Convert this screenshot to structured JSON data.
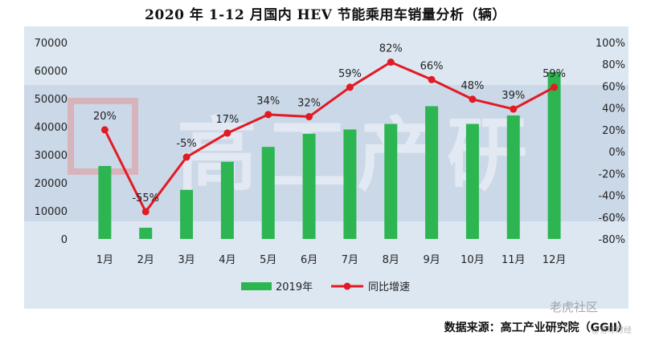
{
  "title": "2020 年 1-12 月国内 HEV 节能乘用车销量分析（辆）",
  "source": "数据来源：高工产业研究院（GGII）",
  "watermark_text": "高工产研",
  "corner_watermark": "老虎社区",
  "corner_watermark_sub": "@雪球财经",
  "colors": {
    "bar": "#2db552",
    "line": "#e21a23",
    "panel": "#dde7f2"
  },
  "chart_data": {
    "type": "bar+line",
    "categories": [
      "1月",
      "2月",
      "3月",
      "4月",
      "5月",
      "6月",
      "7月",
      "8月",
      "9月",
      "10月",
      "11月",
      "12月"
    ],
    "series": [
      {
        "name": "2019年",
        "type": "bar",
        "axis": "left",
        "values": [
          26000,
          4000,
          17500,
          27500,
          32800,
          37500,
          39000,
          41000,
          47300,
          41000,
          44000,
          59500
        ]
      },
      {
        "name": "同比增速",
        "type": "line",
        "axis": "right",
        "values": [
          20,
          -55,
          -5,
          17,
          34,
          32,
          59,
          82,
          66,
          48,
          39,
          59
        ],
        "labels": [
          "20%",
          "-55%",
          "-5%",
          "17%",
          "34%",
          "32%",
          "59%",
          "82%",
          "66%",
          "48%",
          "39%",
          "59%"
        ]
      }
    ],
    "y_left": {
      "min": 0,
      "max": 70000,
      "ticks": [
        "0",
        "10000",
        "20000",
        "30000",
        "40000",
        "50000",
        "60000",
        "70000"
      ]
    },
    "y_right": {
      "min": -80,
      "max": 100,
      "ticks": [
        "-80%",
        "-60%",
        "-40%",
        "-20%",
        "0%",
        "20%",
        "40%",
        "60%",
        "80%",
        "100%"
      ]
    },
    "legend": {
      "placement": "bottom",
      "items": [
        "2019年",
        "同比增速"
      ]
    },
    "grid": false
  }
}
